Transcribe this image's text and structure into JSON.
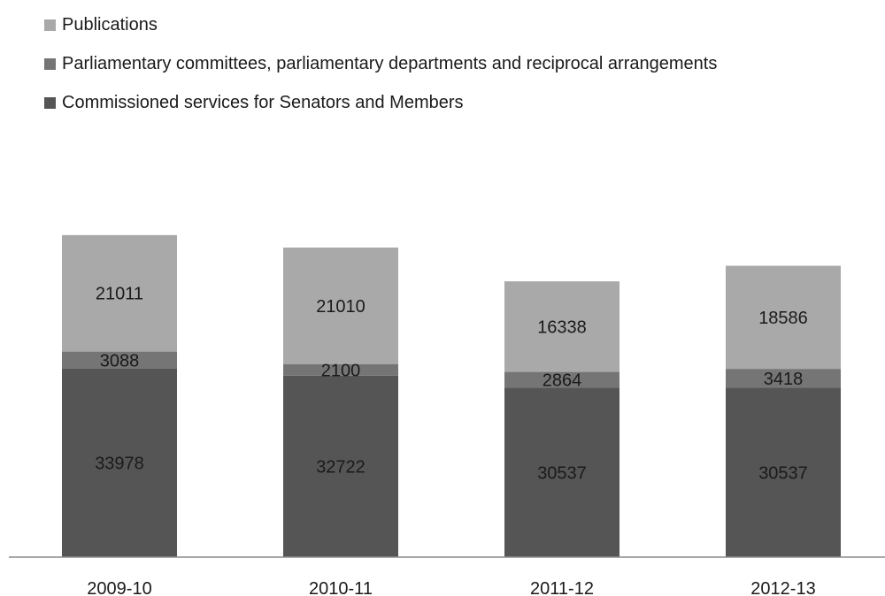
{
  "chart_data": {
    "type": "bar",
    "stacked": true,
    "categories": [
      "2009-10",
      "2010-11",
      "2011-12",
      "2012-13"
    ],
    "series": [
      {
        "name": "Commissioned services for Senators and Members",
        "values": [
          33978,
          32722,
          30537,
          30537
        ],
        "color": "#555555",
        "label_color": "#1a1a1a"
      },
      {
        "name": "Parliamentary committees, parliamentary departments and reciprocal arrangements",
        "values": [
          3088,
          2100,
          2864,
          3418
        ],
        "color": "#757575",
        "label_color": "#1a1a1a"
      },
      {
        "name": "Publications",
        "values": [
          21011,
          21010,
          16338,
          18586
        ],
        "color": "#a9a9a9",
        "label_color": "#1a1a1a"
      }
    ],
    "legend_order": [
      2,
      1,
      0
    ],
    "legend_position": "top-left",
    "ylim": [
      0,
      63000
    ],
    "grid": false,
    "title": "",
    "xlabel": "",
    "ylabel": ""
  }
}
